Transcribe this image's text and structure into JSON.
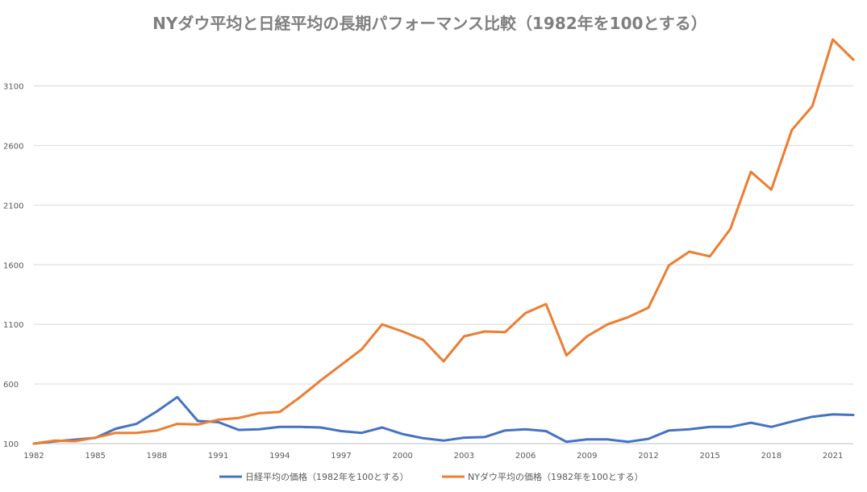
{
  "chart_data": {
    "type": "line",
    "title": "NYダウ平均と日経平均の長期パフォーマンス比較（1982年を100とする）",
    "xlabel": "",
    "ylabel": "",
    "x": [
      1982,
      1983,
      1984,
      1985,
      1986,
      1987,
      1988,
      1989,
      1990,
      1991,
      1992,
      1993,
      1994,
      1995,
      1996,
      1997,
      1998,
      1999,
      2000,
      2001,
      2002,
      2003,
      2004,
      2005,
      2006,
      2007,
      2008,
      2009,
      2010,
      2011,
      2012,
      2013,
      2014,
      2015,
      2016,
      2017,
      2018,
      2019,
      2020,
      2021,
      2022
    ],
    "x_tick_labels": [
      "1982",
      "1985",
      "1988",
      "1991",
      "1994",
      "1997",
      "2000",
      "2003",
      "2006",
      "2009",
      "2012",
      "2015",
      "2018",
      "2021"
    ],
    "y_ticks": [
      100,
      600,
      1100,
      1600,
      2100,
      2600,
      3100
    ],
    "ylim": [
      100,
      3550
    ],
    "grid": true,
    "legend_position": "bottom",
    "series": [
      {
        "name": "日経平均の価格（1982年を100とする）",
        "color": "#4472c4",
        "values": [
          100,
          118,
          133,
          148,
          225,
          265,
          370,
          490,
          290,
          280,
          215,
          220,
          240,
          240,
          235,
          205,
          190,
          235,
          180,
          145,
          125,
          150,
          155,
          210,
          220,
          205,
          115,
          135,
          135,
          115,
          140,
          210,
          220,
          240,
          240,
          275,
          240,
          285,
          325,
          345,
          340
        ]
      },
      {
        "name": "NYダウ平均の価格（1982年を100とする）",
        "color": "#ed7d31",
        "values": [
          100,
          125,
          120,
          150,
          190,
          190,
          210,
          265,
          260,
          300,
          315,
          355,
          365,
          490,
          630,
          760,
          890,
          1100,
          1040,
          970,
          790,
          1000,
          1040,
          1035,
          1195,
          1270,
          840,
          1000,
          1100,
          1160,
          1240,
          1595,
          1710,
          1670,
          1900,
          2380,
          2230,
          2730,
          2930,
          3490,
          3320
        ]
      }
    ]
  }
}
